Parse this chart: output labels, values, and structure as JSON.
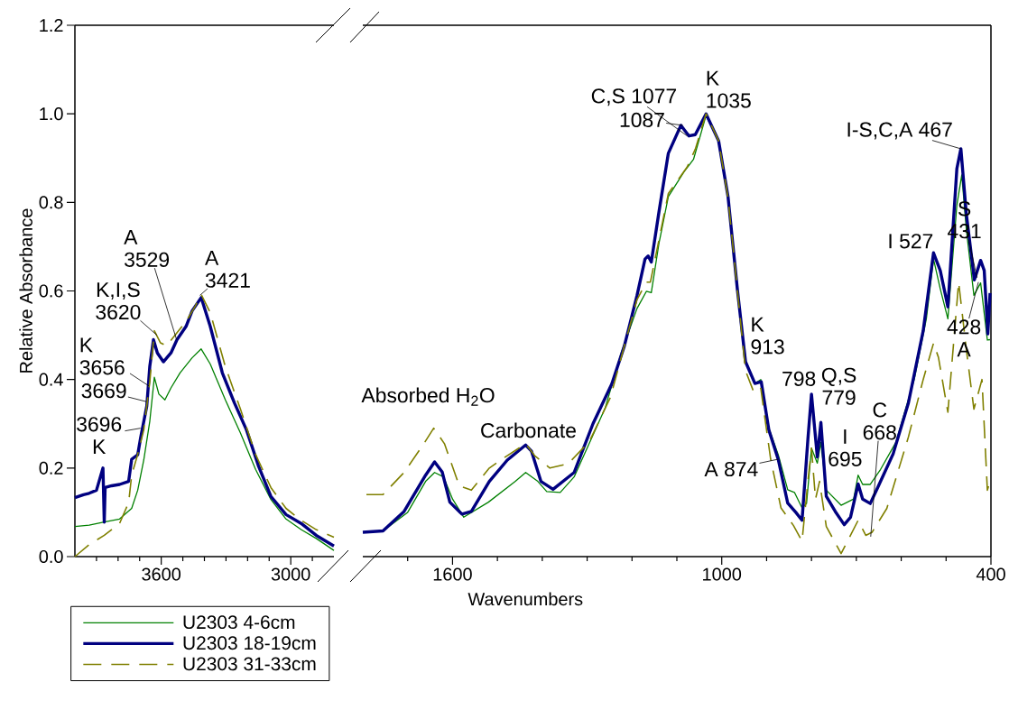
{
  "chart_data": [
    {
      "type": "line",
      "ylabel": "Relative Absorbance",
      "xlim": [
        4000,
        2800
      ],
      "ylim": [
        0,
        1.2
      ],
      "xticks": [
        {
          "value": 3900,
          "label": null
        },
        {
          "value": 3800,
          "label": null
        },
        {
          "value": 3700,
          "label": null
        },
        3600,
        {
          "value": 3500,
          "label": null
        },
        {
          "value": 3400,
          "label": null
        },
        {
          "value": 3300,
          "label": null
        },
        {
          "value": 3200,
          "label": null
        },
        {
          "value": 3100,
          "label": null
        },
        3000,
        {
          "value": 2900,
          "label": null
        }
      ],
      "yticks": [
        {
          "value": 0,
          "label": "0.0"
        },
        0.2,
        0.4,
        0.6,
        0.8,
        {
          "value": 1,
          "label": "1.0"
        },
        1.2
      ],
      "legend": "bottom left",
      "marker": "none",
      "series": [
        {
          "name": "U2303 4-6cm",
          "color": "#008000",
          "line_style": "solid",
          "x": [
            4000,
            3934,
            3864,
            3793,
            3737,
            3709,
            3681,
            3653,
            3632,
            3611,
            3583,
            3555,
            3513,
            3457,
            3415,
            3373,
            3303,
            3233,
            3163,
            3092,
            3022,
            2952,
            2882,
            2800
          ],
          "values": [
            0.068,
            0.071,
            0.078,
            0.085,
            0.109,
            0.15,
            0.218,
            0.306,
            0.405,
            0.367,
            0.354,
            0.381,
            0.415,
            0.449,
            0.469,
            0.435,
            0.354,
            0.279,
            0.197,
            0.129,
            0.085,
            0.061,
            0.041,
            0.014
          ]
        },
        {
          "name": "U2303 18-19cm",
          "color": "#000080",
          "line_style": "solid",
          "x": [
            4000,
            3960,
            3934,
            3900,
            3870,
            3864,
            3860,
            3830,
            3793,
            3751,
            3737,
            3709,
            3695,
            3667,
            3653,
            3636,
            3618,
            3590,
            3555,
            3527,
            3485,
            3457,
            3415,
            3373,
            3317,
            3261,
            3205,
            3149,
            3092,
            3022,
            2952,
            2882,
            2800
          ],
          "values": [
            0.133,
            0.14,
            0.143,
            0.15,
            0.2,
            0.078,
            0.156,
            0.16,
            0.163,
            0.17,
            0.22,
            0.23,
            0.27,
            0.34,
            0.43,
            0.49,
            0.46,
            0.44,
            0.46,
            0.49,
            0.52,
            0.555,
            0.585,
            0.52,
            0.415,
            0.347,
            0.286,
            0.204,
            0.136,
            0.095,
            0.075,
            0.048,
            0.024
          ]
        },
        {
          "name": "U2303 31-33cm",
          "color": "#808000",
          "line_style": "dashed",
          "x": [
            4000,
            3934,
            3864,
            3793,
            3751,
            3737,
            3709,
            3681,
            3653,
            3632,
            3604,
            3576,
            3541,
            3485,
            3443,
            3415,
            3373,
            3303,
            3233,
            3163,
            3092,
            3022,
            2952,
            2882,
            2800
          ],
          "values": [
            0.0,
            0.027,
            0.048,
            0.075,
            0.122,
            0.184,
            0.231,
            0.286,
            0.395,
            0.51,
            0.483,
            0.476,
            0.497,
            0.531,
            0.565,
            0.592,
            0.551,
            0.429,
            0.333,
            0.231,
            0.156,
            0.109,
            0.082,
            0.061,
            0.044
          ]
        }
      ],
      "annotations": [
        {
          "text": "3696 K",
          "x": 3696,
          "y": 0.29
        },
        {
          "text": "3669",
          "x": 3669,
          "y": 0.35
        },
        {
          "text": "K 3656",
          "x": 3656,
          "y": 0.385
        },
        {
          "text": "K,I,S 3620",
          "x": 3620,
          "y": 0.5
        },
        {
          "text": "A 3529",
          "x": 3529,
          "y": 0.49
        },
        {
          "text": "A 3421",
          "x": 3421,
          "y": 0.59
        }
      ]
    },
    {
      "type": "line",
      "xlabel": "Wavenumbers",
      "xlim": [
        1800,
        400
      ],
      "ylim": [
        0,
        1.2
      ],
      "tick_labels": "x",
      "marker": "none",
      "xticks": [
        {
          "value": 1700,
          "label": null
        },
        1600,
        {
          "value": 1500,
          "label": null
        },
        {
          "value": 1400,
          "label": null
        },
        {
          "value": 1300,
          "label": null
        },
        {
          "value": 1200,
          "label": null
        },
        {
          "value": 1100,
          "label": null
        },
        1000,
        {
          "value": 900,
          "label": null
        },
        {
          "value": 800,
          "label": null
        },
        {
          "value": 700,
          "label": null
        },
        {
          "value": 600,
          "label": null
        },
        {
          "value": 500,
          "label": null
        },
        400
      ],
      "series": [
        {
          "color": "#008000",
          "line_style": "solid",
          "x": [
            1800,
            1755,
            1700,
            1660,
            1640,
            1620,
            1600,
            1575,
            1520,
            1460,
            1437,
            1410,
            1390,
            1360,
            1329,
            1260,
            1224,
            1189,
            1168,
            1157,
            1140,
            1119,
            1084,
            1063,
            1035,
            1007,
            986,
            965,
            947,
            926,
            913,
            895,
            874,
            853,
            838,
            821,
            811,
            800,
            787,
            779,
            767,
            734,
            706,
            696,
            686,
            669,
            646,
            612,
            571,
            544,
            528,
            513,
            496,
            476,
            465,
            455,
            438,
            423,
            408,
            402
          ],
          "values": [
            0.055,
            0.058,
            0.1,
            0.17,
            0.19,
            0.18,
            0.13,
            0.089,
            0.123,
            0.17,
            0.19,
            0.17,
            0.147,
            0.145,
            0.18,
            0.335,
            0.46,
            0.56,
            0.599,
            0.596,
            0.707,
            0.813,
            0.869,
            0.897,
            0.996,
            0.939,
            0.813,
            0.602,
            0.44,
            0.391,
            0.4,
            0.29,
            0.23,
            0.151,
            0.145,
            0.11,
            0.12,
            0.245,
            0.211,
            0.258,
            0.15,
            0.116,
            0.13,
            0.184,
            0.163,
            0.163,
            0.197,
            0.258,
            0.4,
            0.537,
            0.672,
            0.605,
            0.537,
            0.794,
            0.862,
            0.74,
            0.59,
            0.618,
            0.489,
            0.49
          ]
        },
        {
          "color": "#000080",
          "line_style": "solid",
          "x": [
            1800,
            1755,
            1708,
            1660,
            1640,
            1623,
            1606,
            1579,
            1558,
            1518,
            1478,
            1437,
            1424,
            1403,
            1376,
            1329,
            1287,
            1245,
            1217,
            1189,
            1171,
            1164,
            1157,
            1140,
            1119,
            1091,
            1073,
            1059,
            1035,
            1007,
            986,
            965,
            947,
            926,
            912,
            895,
            874,
            853,
            835,
            821,
            808,
            800,
            787,
            779,
            767,
            747,
            727,
            713,
            696,
            686,
            669,
            652,
            618,
            584,
            551,
            528,
            513,
            496,
            476,
            467,
            455,
            437,
            423,
            415,
            407,
            402
          ],
          "values": [
            0.055,
            0.058,
            0.102,
            0.184,
            0.214,
            0.191,
            0.123,
            0.096,
            0.102,
            0.17,
            0.218,
            0.252,
            0.238,
            0.17,
            0.152,
            0.19,
            0.3,
            0.39,
            0.476,
            0.589,
            0.672,
            0.679,
            0.665,
            0.778,
            0.911,
            0.974,
            0.95,
            0.953,
            1.0,
            0.939,
            0.813,
            0.602,
            0.44,
            0.391,
            0.395,
            0.286,
            0.219,
            0.121,
            0.1,
            0.082,
            0.265,
            0.367,
            0.225,
            0.303,
            0.136,
            0.102,
            0.072,
            0.089,
            0.164,
            0.13,
            0.12,
            0.157,
            0.232,
            0.347,
            0.51,
            0.686,
            0.646,
            0.564,
            0.876,
            0.921,
            0.775,
            0.625,
            0.669,
            0.646,
            0.503,
            0.595
          ]
        },
        {
          "color": "#808000",
          "line_style": "dashed",
          "x": [
            1792,
            1755,
            1708,
            1664,
            1642,
            1618,
            1585,
            1558,
            1518,
            1478,
            1437,
            1417,
            1383,
            1342,
            1295,
            1248,
            1224,
            1189,
            1168,
            1159,
            1119,
            1077,
            1059,
            1035,
            1007,
            986,
            947,
            928,
            913,
            891,
            868,
            840,
            821,
            808,
            800,
            791,
            782,
            767,
            734,
            713,
            696,
            679,
            665,
            632,
            584,
            551,
            528,
            517,
            496,
            472,
            455,
            438,
            420,
            408,
            402
          ],
          "values": [
            0.14,
            0.14,
            0.19,
            0.255,
            0.29,
            0.255,
            0.16,
            0.15,
            0.2,
            0.228,
            0.255,
            0.228,
            0.2,
            0.21,
            0.26,
            0.36,
            0.45,
            0.58,
            0.62,
            0.62,
            0.82,
            0.88,
            0.92,
            1.0,
            0.939,
            0.81,
            0.42,
            0.37,
            0.38,
            0.22,
            0.11,
            0.07,
            0.035,
            0.17,
            0.245,
            0.13,
            0.17,
            0.068,
            0.007,
            0.048,
            0.082,
            0.048,
            0.055,
            0.109,
            0.27,
            0.4,
            0.482,
            0.45,
            0.326,
            0.62,
            0.469,
            0.333,
            0.4,
            0.15,
            0.17
          ]
        }
      ],
      "annotations": [
        {
          "text": "Absorbed H$_{2}$O",
          "x": 1640,
          "y": 0.29
        },
        {
          "text": "Carbonate",
          "x": 1437,
          "y": 0.255
        },
        {
          "text": "C,S 1077",
          "x": 1077,
          "y": 0.95
        },
        {
          "text": "1087",
          "x": 1087,
          "y": 0.974
        },
        {
          "text": "K 1035",
          "x": 1035,
          "y": 1.0
        },
        {
          "text": "K 913",
          "x": 913,
          "y": 0.395
        },
        {
          "text": "A 874",
          "x": 874,
          "y": 0.22
        },
        {
          "text": "798",
          "x": 798,
          "y": 0.367
        },
        {
          "text": "Q,S 779",
          "x": 779,
          "y": 0.303
        },
        {
          "text": "I 695",
          "x": 695,
          "y": 0.164
        },
        {
          "text": "C 668",
          "x": 668,
          "y": 0.045
        },
        {
          "text": "I 527",
          "x": 527,
          "y": 0.686
        },
        {
          "text": "I-S,C,A 467",
          "x": 467,
          "y": 0.921
        },
        {
          "text": "S 431",
          "x": 431,
          "y": 0.63
        },
        {
          "text": "428 A",
          "x": 428,
          "y": 0.62
        }
      ]
    }
  ]
}
